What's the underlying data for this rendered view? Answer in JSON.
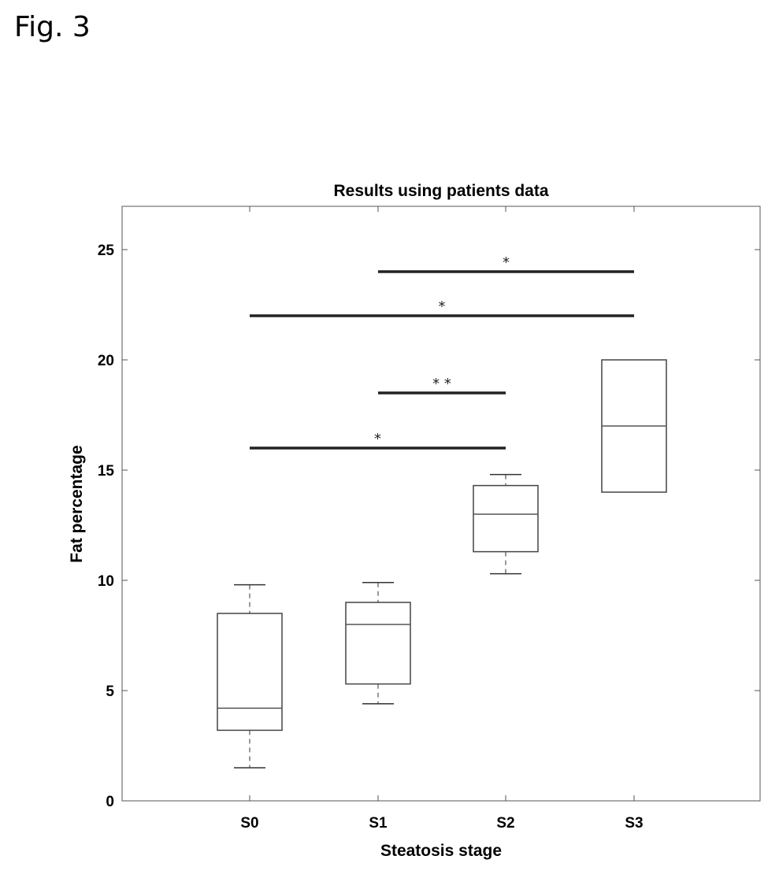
{
  "figure_label": "Fig. 3",
  "chart_data": {
    "type": "box",
    "title": "Results using patients data",
    "xlabel": "Steatosis stage",
    "ylabel": "Fat percentage",
    "ylim": [
      0,
      26
    ],
    "yticks": [
      0,
      5,
      10,
      15,
      20,
      25
    ],
    "categories": [
      "S0",
      "S1",
      "S2",
      "S3"
    ],
    "boxes": [
      {
        "category": "S0",
        "whisker_low": 1.5,
        "q1": 3.2,
        "median": 4.2,
        "q3": 8.5,
        "whisker_high": 9.8
      },
      {
        "category": "S1",
        "whisker_low": 4.4,
        "q1": 5.3,
        "median": 8.0,
        "q3": 9.0,
        "whisker_high": 9.9
      },
      {
        "category": "S2",
        "whisker_low": 10.3,
        "q1": 11.3,
        "median": 13.0,
        "q3": 14.3,
        "whisker_high": 14.8
      },
      {
        "category": "S3",
        "whisker_low": 14.0,
        "q1": 14.0,
        "median": 17.0,
        "q3": 20.0,
        "whisker_high": 20.0
      }
    ],
    "significance": [
      {
        "from": "S0",
        "to": "S2",
        "y": 16.0,
        "marker": "*"
      },
      {
        "from": "S1",
        "to": "S2",
        "y": 18.5,
        "marker": "* *"
      },
      {
        "from": "S0",
        "to": "S3",
        "y": 22.0,
        "marker": "*"
      },
      {
        "from": "S1",
        "to": "S3",
        "y": 24.0,
        "marker": "*"
      }
    ],
    "grid": false
  }
}
